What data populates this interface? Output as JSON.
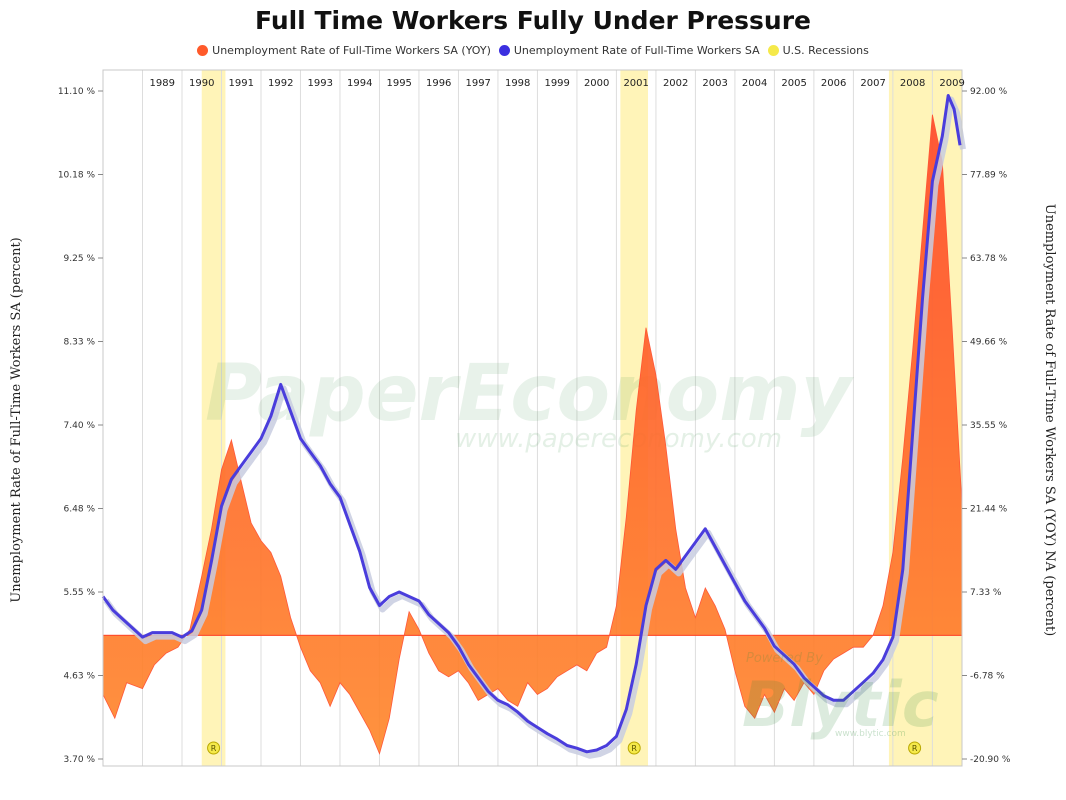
{
  "title": "Full Time Workers Fully Under Pressure",
  "colors": {
    "yoy_area": "#ff5a2a",
    "yoy_area_light": "#ffa23a",
    "level_line": "#4a3ddc",
    "level_shadow": "#c8cce0",
    "recession": "#fff4b8",
    "grid": "#dddddd"
  },
  "watermark": {
    "main": "PaperEconomy",
    "url": "www.papereconomy.com",
    "powered": "Powered By",
    "brand": "Blytic",
    "brand_url": "www.blytic.com"
  },
  "chart_data": {
    "type": "line",
    "title": "Full Time Workers Fully Under Pressure",
    "x_ticks": [
      "1989",
      "1990",
      "1991",
      "1992",
      "1993",
      "1994",
      "1995",
      "1996",
      "1997",
      "1998",
      "1999",
      "2000",
      "2001",
      "2002",
      "2003",
      "2004",
      "2005",
      "2006",
      "2007",
      "2008",
      "2009"
    ],
    "x_range": [
      1988.0,
      2009.75
    ],
    "y_left": {
      "label": "Unemployment Rate of Full-Time Workers SA (percent)",
      "ticks": [
        "3.70 %",
        "4.63 %",
        "5.55 %",
        "6.48 %",
        "7.40 %",
        "8.33 %",
        "9.25 %",
        "10.18 %",
        "11.10 %"
      ],
      "range": [
        3.7,
        11.1
      ]
    },
    "y_right": {
      "label": "Unemployment Rate of Full-Time Workers SA (YOY) NA (percent)",
      "ticks": [
        "-20.90 %",
        "-6.78 %",
        "7.33 %",
        "21.44 %",
        "35.55 %",
        "49.66 %",
        "63.78 %",
        "77.89 %",
        "92.00 %"
      ],
      "range": [
        -20.9,
        92.0
      ]
    },
    "legend_position": "top-center",
    "grid": true,
    "recession_marker": "R",
    "recessions": [
      {
        "start": 1990.5,
        "end": 1991.1
      },
      {
        "start": 2001.1,
        "end": 2001.8
      },
      {
        "start": 2007.9,
        "end": 2009.75
      }
    ],
    "series": [
      {
        "name": "Unemployment Rate of Full-Time Workers SA (YOY)",
        "type": "area",
        "axis": "right",
        "points": [
          [
            1988.0,
            -10
          ],
          [
            1988.3,
            -14
          ],
          [
            1988.6,
            -8
          ],
          [
            1989.0,
            -9
          ],
          [
            1989.3,
            -5
          ],
          [
            1989.6,
            -3
          ],
          [
            1989.9,
            -2
          ],
          [
            1990.2,
            1
          ],
          [
            1990.5,
            10
          ],
          [
            1990.75,
            18
          ],
          [
            1991.0,
            28
          ],
          [
            1991.25,
            33
          ],
          [
            1991.5,
            26
          ],
          [
            1991.75,
            19
          ],
          [
            1992.0,
            16
          ],
          [
            1992.25,
            14
          ],
          [
            1992.5,
            10
          ],
          [
            1992.75,
            3
          ],
          [
            1993.0,
            -2
          ],
          [
            1993.25,
            -6
          ],
          [
            1993.5,
            -8
          ],
          [
            1993.75,
            -12
          ],
          [
            1994.0,
            -8
          ],
          [
            1994.25,
            -10
          ],
          [
            1994.5,
            -13
          ],
          [
            1994.75,
            -16
          ],
          [
            1995.0,
            -20
          ],
          [
            1995.25,
            -14
          ],
          [
            1995.5,
            -4
          ],
          [
            1995.75,
            4
          ],
          [
            1996.0,
            1
          ],
          [
            1996.25,
            -3
          ],
          [
            1996.5,
            -6
          ],
          [
            1996.75,
            -7
          ],
          [
            1997.0,
            -6
          ],
          [
            1997.25,
            -8
          ],
          [
            1997.5,
            -11
          ],
          [
            1997.75,
            -10
          ],
          [
            1998.0,
            -9
          ],
          [
            1998.25,
            -11
          ],
          [
            1998.5,
            -12
          ],
          [
            1998.75,
            -8
          ],
          [
            1999.0,
            -10
          ],
          [
            1999.25,
            -9
          ],
          [
            1999.5,
            -7
          ],
          [
            1999.75,
            -6
          ],
          [
            2000.0,
            -5
          ],
          [
            2000.25,
            -6
          ],
          [
            2000.5,
            -3
          ],
          [
            2000.75,
            -2
          ],
          [
            2001.0,
            5
          ],
          [
            2001.25,
            20
          ],
          [
            2001.5,
            38
          ],
          [
            2001.75,
            52
          ],
          [
            2002.0,
            44
          ],
          [
            2002.25,
            32
          ],
          [
            2002.5,
            18
          ],
          [
            2002.75,
            8
          ],
          [
            2003.0,
            3
          ],
          [
            2003.25,
            8
          ],
          [
            2003.5,
            5
          ],
          [
            2003.75,
            1
          ],
          [
            2004.0,
            -6
          ],
          [
            2004.25,
            -12
          ],
          [
            2004.5,
            -14
          ],
          [
            2004.75,
            -10
          ],
          [
            2005.0,
            -13
          ],
          [
            2005.25,
            -9
          ],
          [
            2005.5,
            -11
          ],
          [
            2005.75,
            -8
          ],
          [
            2006.0,
            -10
          ],
          [
            2006.25,
            -6
          ],
          [
            2006.5,
            -4
          ],
          [
            2006.75,
            -3
          ],
          [
            2007.0,
            -2
          ],
          [
            2007.25,
            -2
          ],
          [
            2007.5,
            0
          ],
          [
            2007.75,
            5
          ],
          [
            2008.0,
            14
          ],
          [
            2008.25,
            30
          ],
          [
            2008.5,
            48
          ],
          [
            2008.75,
            68
          ],
          [
            2009.0,
            88
          ],
          [
            2009.25,
            80
          ],
          [
            2009.5,
            52
          ],
          [
            2009.75,
            22
          ]
        ]
      },
      {
        "name": "Unemployment Rate of Full-Time Workers SA",
        "type": "line",
        "axis": "left",
        "points": [
          [
            1988.0,
            5.5
          ],
          [
            1988.25,
            5.35
          ],
          [
            1988.5,
            5.25
          ],
          [
            1988.75,
            5.15
          ],
          [
            1989.0,
            5.05
          ],
          [
            1989.25,
            5.1
          ],
          [
            1989.5,
            5.1
          ],
          [
            1989.75,
            5.1
          ],
          [
            1990.0,
            5.05
          ],
          [
            1990.25,
            5.12
          ],
          [
            1990.5,
            5.35
          ],
          [
            1990.75,
            5.9
          ],
          [
            1991.0,
            6.5
          ],
          [
            1991.25,
            6.8
          ],
          [
            1991.5,
            6.95
          ],
          [
            1991.75,
            7.1
          ],
          [
            1992.0,
            7.25
          ],
          [
            1992.25,
            7.5
          ],
          [
            1992.5,
            7.85
          ],
          [
            1992.75,
            7.55
          ],
          [
            1993.0,
            7.25
          ],
          [
            1993.25,
            7.1
          ],
          [
            1993.5,
            6.95
          ],
          [
            1993.75,
            6.75
          ],
          [
            1994.0,
            6.6
          ],
          [
            1994.25,
            6.3
          ],
          [
            1994.5,
            6.0
          ],
          [
            1994.75,
            5.6
          ],
          [
            1995.0,
            5.4
          ],
          [
            1995.25,
            5.5
          ],
          [
            1995.5,
            5.55
          ],
          [
            1995.75,
            5.5
          ],
          [
            1996.0,
            5.45
          ],
          [
            1996.25,
            5.3
          ],
          [
            1996.5,
            5.2
          ],
          [
            1996.75,
            5.1
          ],
          [
            1997.0,
            4.95
          ],
          [
            1997.25,
            4.75
          ],
          [
            1997.5,
            4.6
          ],
          [
            1997.75,
            4.45
          ],
          [
            1998.0,
            4.35
          ],
          [
            1998.25,
            4.3
          ],
          [
            1998.5,
            4.22
          ],
          [
            1998.75,
            4.12
          ],
          [
            1999.0,
            4.05
          ],
          [
            1999.25,
            3.98
          ],
          [
            1999.5,
            3.92
          ],
          [
            1999.75,
            3.85
          ],
          [
            2000.0,
            3.82
          ],
          [
            2000.25,
            3.78
          ],
          [
            2000.5,
            3.8
          ],
          [
            2000.75,
            3.85
          ],
          [
            2001.0,
            3.95
          ],
          [
            2001.25,
            4.25
          ],
          [
            2001.5,
            4.75
          ],
          [
            2001.75,
            5.4
          ],
          [
            2002.0,
            5.8
          ],
          [
            2002.25,
            5.9
          ],
          [
            2002.5,
            5.8
          ],
          [
            2002.75,
            5.95
          ],
          [
            2003.0,
            6.1
          ],
          [
            2003.25,
            6.25
          ],
          [
            2003.5,
            6.05
          ],
          [
            2003.75,
            5.85
          ],
          [
            2004.0,
            5.65
          ],
          [
            2004.25,
            5.45
          ],
          [
            2004.5,
            5.3
          ],
          [
            2004.75,
            5.15
          ],
          [
            2005.0,
            4.95
          ],
          [
            2005.25,
            4.85
          ],
          [
            2005.5,
            4.75
          ],
          [
            2005.75,
            4.6
          ],
          [
            2006.0,
            4.5
          ],
          [
            2006.25,
            4.4
          ],
          [
            2006.5,
            4.35
          ],
          [
            2006.75,
            4.35
          ],
          [
            2007.0,
            4.45
          ],
          [
            2007.25,
            4.55
          ],
          [
            2007.5,
            4.65
          ],
          [
            2007.75,
            4.8
          ],
          [
            2008.0,
            5.05
          ],
          [
            2008.25,
            5.8
          ],
          [
            2008.5,
            7.3
          ],
          [
            2008.75,
            8.8
          ],
          [
            2009.0,
            10.1
          ],
          [
            2009.25,
            10.6
          ],
          [
            2009.4,
            11.05
          ],
          [
            2009.55,
            10.9
          ],
          [
            2009.7,
            10.5
          ]
        ]
      }
    ]
  }
}
